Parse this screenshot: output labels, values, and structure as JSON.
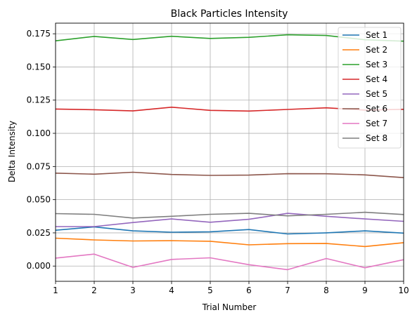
{
  "chart_data": {
    "type": "line",
    "title": "Black Particles Intensity",
    "xlabel": "Trial Number",
    "ylabel": "Delta Intensity",
    "xlim": [
      1,
      10
    ],
    "ylim": [
      -0.0115,
      0.183
    ],
    "grid": true,
    "legend_position": "top-right",
    "x": [
      1,
      2,
      3,
      4,
      5,
      6,
      7,
      8,
      9,
      10
    ],
    "x_ticks": [
      "1",
      "2",
      "3",
      "4",
      "5",
      "6",
      "7",
      "8",
      "9",
      "10"
    ],
    "y_ticks": [
      {
        "value": 0.0,
        "label": "0.000"
      },
      {
        "value": 0.025,
        "label": "0.025"
      },
      {
        "value": 0.05,
        "label": "0.050"
      },
      {
        "value": 0.075,
        "label": "0.075"
      },
      {
        "value": 0.1,
        "label": "0.100"
      },
      {
        "value": 0.125,
        "label": "0.125"
      },
      {
        "value": 0.15,
        "label": "0.150"
      },
      {
        "value": 0.175,
        "label": "0.175"
      }
    ],
    "series": [
      {
        "name": "Set 1",
        "color": "#1f77b4",
        "values": [
          0.027,
          0.0295,
          0.0265,
          0.0255,
          0.0258,
          0.0275,
          0.0242,
          0.025,
          0.0265,
          0.0248
        ]
      },
      {
        "name": "Set 2",
        "color": "#ff7f0e",
        "values": [
          0.021,
          0.0197,
          0.0189,
          0.0191,
          0.0187,
          0.016,
          0.0169,
          0.017,
          0.0147,
          0.0176
        ]
      },
      {
        "name": "Set 3",
        "color": "#2ca02c",
        "values": [
          0.1697,
          0.173,
          0.1707,
          0.1731,
          0.1715,
          0.1723,
          0.1742,
          0.1737,
          0.1705,
          0.1694
        ]
      },
      {
        "name": "Set 4",
        "color": "#d62728",
        "values": [
          0.1183,
          0.1178,
          0.1169,
          0.1197,
          0.1173,
          0.1168,
          0.118,
          0.1192,
          0.1175,
          0.1181
        ]
      },
      {
        "name": "Set 5",
        "color": "#9467bd",
        "values": [
          0.0297,
          0.0297,
          0.0328,
          0.0355,
          0.033,
          0.0352,
          0.0397,
          0.0375,
          0.0355,
          0.0337
        ]
      },
      {
        "name": "Set 6",
        "color": "#8c564b",
        "values": [
          0.07,
          0.0692,
          0.0707,
          0.069,
          0.0683,
          0.0685,
          0.0696,
          0.0695,
          0.0687,
          0.0666
        ]
      },
      {
        "name": "Set 7",
        "color": "#e377c2",
        "values": [
          0.006,
          0.009,
          -0.001,
          0.005,
          0.0062,
          0.001,
          -0.0027,
          0.0057,
          -0.0013,
          0.0048
        ]
      },
      {
        "name": "Set 8",
        "color": "#7f7f7f",
        "values": [
          0.0395,
          0.039,
          0.0362,
          0.0375,
          0.039,
          0.0397,
          0.0378,
          0.039,
          0.0405,
          0.0388
        ]
      }
    ]
  }
}
